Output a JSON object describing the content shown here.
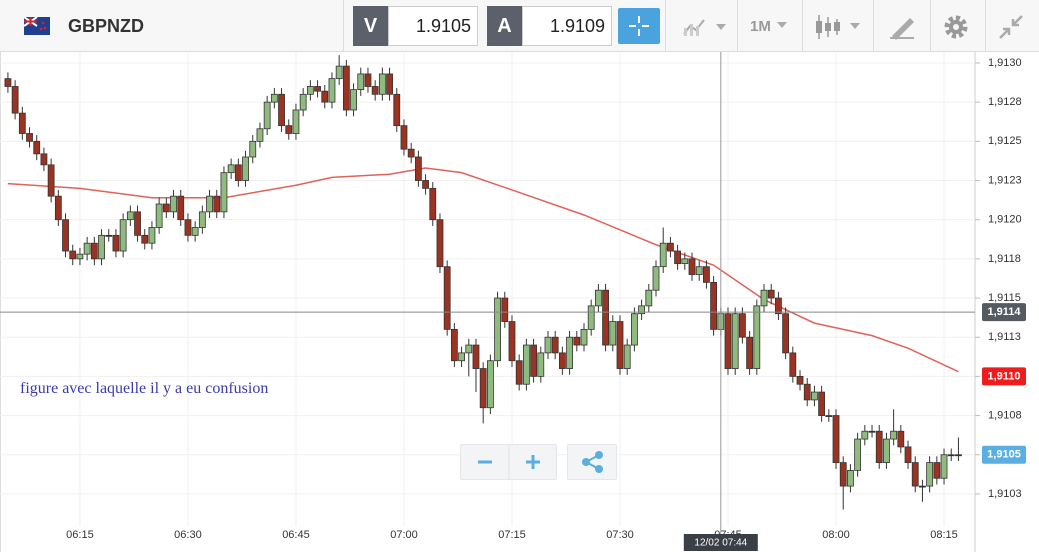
{
  "toolbar": {
    "symbol": "GBPNZD",
    "bid_label": "V",
    "bid": "1.9105",
    "ask_label": "A",
    "ask": "1.9109",
    "timeframe": "1M"
  },
  "chart_data": {
    "type": "candlestick",
    "annotation": "figure avec laquelle il y a eu confusion",
    "up_color": "#8fbc7e",
    "down_color": "#9b3322",
    "xlim": [
      363.9,
      499.3
    ],
    "ylim": [
      1.91009,
      1.91307
    ],
    "xticks": [
      {
        "value": 375,
        "label": "06:15"
      },
      {
        "value": 390,
        "label": "06:30"
      },
      {
        "value": 405,
        "label": "06:45"
      },
      {
        "value": 420,
        "label": "07:00"
      },
      {
        "value": 435,
        "label": "07:15"
      },
      {
        "value": 450,
        "label": "07:30"
      },
      {
        "value": 465,
        "label": "07:45"
      },
      {
        "value": 480,
        "label": "08:00"
      },
      {
        "value": 495,
        "label": "08:15"
      }
    ],
    "yticks": [
      {
        "value": 1.913,
        "label": "1,9130"
      },
      {
        "value": 1.91275,
        "label": "1,9128"
      },
      {
        "value": 1.9125,
        "label": "1,9125"
      },
      {
        "value": 1.91225,
        "label": "1,9123"
      },
      {
        "value": 1.912,
        "label": "1,9120"
      },
      {
        "value": 1.91175,
        "label": "1,9118"
      },
      {
        "value": 1.9115,
        "label": "1,9115"
      },
      {
        "value": 1.91125,
        "label": "1,9113"
      },
      {
        "value": 1.911,
        "label": "1,9110"
      },
      {
        "value": 1.91075,
        "label": "1,9108"
      },
      {
        "value": 1.9105,
        "label": "1,9105"
      },
      {
        "value": 1.91025,
        "label": "1,9103"
      }
    ],
    "grid": true,
    "x": [
      365,
      366,
      367,
      368,
      369,
      370,
      371,
      372,
      373,
      374,
      375,
      376,
      377,
      378,
      379,
      380,
      381,
      382,
      383,
      384,
      385,
      386,
      387,
      388,
      389,
      390,
      391,
      392,
      393,
      394,
      395,
      396,
      397,
      398,
      399,
      400,
      401,
      402,
      403,
      404,
      405,
      406,
      407,
      408,
      409,
      410,
      411,
      412,
      413,
      414,
      415,
      416,
      417,
      418,
      419,
      420,
      421,
      422,
      423,
      424,
      425,
      426,
      427,
      428,
      429,
      430,
      431,
      432,
      433,
      434,
      435,
      436,
      437,
      438,
      439,
      440,
      441,
      442,
      443,
      444,
      445,
      446,
      447,
      448,
      449,
      450,
      451,
      452,
      453,
      454,
      455,
      456,
      457,
      458,
      459,
      460,
      461,
      462,
      463,
      464,
      465,
      466,
      467,
      468,
      469,
      470,
      471,
      472,
      473,
      474,
      475,
      476,
      477,
      478,
      479,
      480,
      481,
      482,
      483,
      484,
      485,
      486,
      487,
      488,
      489,
      490,
      491,
      492,
      493,
      494,
      495,
      496,
      497
    ],
    "open": [
      1.9129,
      1.91285,
      1.91268,
      1.91255,
      1.9125,
      1.91242,
      1.91235,
      1.91215,
      1.912,
      1.9118,
      1.91175,
      1.91178,
      1.91185,
      1.91175,
      1.9119,
      1.9119,
      1.9118,
      1.912,
      1.91205,
      1.9119,
      1.91185,
      1.91195,
      1.9121,
      1.91205,
      1.91215,
      1.912,
      1.9119,
      1.91195,
      1.91205,
      1.91215,
      1.91205,
      1.9123,
      1.91235,
      1.91225,
      1.9124,
      1.9125,
      1.91258,
      1.91275,
      1.9128,
      1.9126,
      1.91255,
      1.9127,
      1.9128,
      1.91285,
      1.91282,
      1.91275,
      1.9129,
      1.91298,
      1.9127,
      1.91283,
      1.91293,
      1.91285,
      1.9128,
      1.91293,
      1.9128,
      1.9126,
      1.91245,
      1.9124,
      1.91225,
      1.9122,
      1.912,
      1.9117,
      1.9113,
      1.9111,
      1.91115,
      1.9112,
      1.91105,
      1.9108,
      1.9111,
      1.9115,
      1.91135,
      1.9111,
      1.91095,
      1.9112,
      1.911,
      1.91115,
      1.91125,
      1.91115,
      1.91105,
      1.91125,
      1.9112,
      1.9113,
      1.91145,
      1.91155,
      1.9112,
      1.91135,
      1.91105,
      1.9112,
      1.9114,
      1.91145,
      1.91155,
      1.9117,
      1.91185,
      1.9118,
      1.91172,
      1.91175,
      1.91165,
      1.9117,
      1.9116,
      1.9113,
      1.9114,
      1.91105,
      1.9114,
      1.91125,
      1.91105,
      1.91145,
      1.91155,
      1.9115,
      1.9114,
      1.91115,
      1.911,
      1.91095,
      1.91085,
      1.9109,
      1.91075,
      1.91075,
      1.91045,
      1.9103,
      1.9104,
      1.9106,
      1.91065,
      1.91065,
      1.91045,
      1.9106,
      1.91065,
      1.91055,
      1.91045,
      1.9103,
      1.9103,
      1.91045,
      1.91035,
      1.9105,
      1.9105
    ],
    "high": [
      1.91294,
      1.91289,
      1.91272,
      1.91259,
      1.91254,
      1.91246,
      1.91239,
      1.91219,
      1.91204,
      1.91184,
      1.91182,
      1.91189,
      1.91189,
      1.91194,
      1.91194,
      1.91194,
      1.91204,
      1.91209,
      1.91209,
      1.91194,
      1.91199,
      1.91214,
      1.91214,
      1.91219,
      1.91219,
      1.91204,
      1.91199,
      1.91209,
      1.91219,
      1.91219,
      1.91234,
      1.91239,
      1.91239,
      1.91244,
      1.91254,
      1.91262,
      1.91279,
      1.91284,
      1.91284,
      1.91264,
      1.91274,
      1.91284,
      1.91289,
      1.91289,
      1.91286,
      1.91294,
      1.91305,
      1.91302,
      1.91287,
      1.91297,
      1.91297,
      1.91289,
      1.91297,
      1.91297,
      1.91284,
      1.91264,
      1.91249,
      1.91244,
      1.91229,
      1.91224,
      1.91204,
      1.91174,
      1.91134,
      1.91119,
      1.91124,
      1.91124,
      1.91109,
      1.91114,
      1.91154,
      1.91154,
      1.91139,
      1.91114,
      1.91124,
      1.91124,
      1.91119,
      1.91129,
      1.91129,
      1.91119,
      1.91129,
      1.91129,
      1.91134,
      1.91149,
      1.91159,
      1.91159,
      1.91139,
      1.91139,
      1.91124,
      1.91144,
      1.91149,
      1.91159,
      1.91174,
      1.91195,
      1.91189,
      1.91184,
      1.91179,
      1.91179,
      1.91174,
      1.91174,
      1.91164,
      1.91144,
      1.91144,
      1.91144,
      1.91144,
      1.91129,
      1.91149,
      1.91159,
      1.91159,
      1.91154,
      1.91144,
      1.91119,
      1.91104,
      1.91099,
      1.91094,
      1.91094,
      1.91079,
      1.91079,
      1.91049,
      1.91044,
      1.91064,
      1.91069,
      1.91069,
      1.91069,
      1.91064,
      1.91079,
      1.91069,
      1.91059,
      1.91049,
      1.91034,
      1.91049,
      1.91049,
      1.91054,
      1.91054,
      1.91061
    ],
    "low": [
      1.91281,
      1.91264,
      1.91251,
      1.91246,
      1.91238,
      1.91231,
      1.91211,
      1.91196,
      1.91176,
      1.91171,
      1.91171,
      1.91174,
      1.91171,
      1.91171,
      1.91186,
      1.91176,
      1.91176,
      1.91196,
      1.91186,
      1.91181,
      1.91181,
      1.91191,
      1.91201,
      1.91201,
      1.91196,
      1.91186,
      1.91186,
      1.91191,
      1.91201,
      1.91201,
      1.91201,
      1.91226,
      1.91221,
      1.91221,
      1.91236,
      1.91246,
      1.91254,
      1.91271,
      1.91256,
      1.91251,
      1.91251,
      1.91266,
      1.91276,
      1.91278,
      1.91271,
      1.91271,
      1.91286,
      1.91266,
      1.91266,
      1.91279,
      1.91281,
      1.91276,
      1.91276,
      1.91276,
      1.91256,
      1.91241,
      1.91236,
      1.91221,
      1.91216,
      1.91196,
      1.91166,
      1.91126,
      1.91106,
      1.91106,
      1.911,
      1.9109,
      1.9107,
      1.91076,
      1.91106,
      1.91131,
      1.91106,
      1.91091,
      1.91091,
      1.91096,
      1.91096,
      1.91111,
      1.91111,
      1.91101,
      1.91101,
      1.91116,
      1.91116,
      1.91126,
      1.91141,
      1.91116,
      1.91116,
      1.91101,
      1.91101,
      1.91116,
      1.91136,
      1.91141,
      1.91151,
      1.91166,
      1.91176,
      1.91168,
      1.91168,
      1.91161,
      1.91161,
      1.91156,
      1.91126,
      1.91126,
      1.91101,
      1.91101,
      1.91121,
      1.91101,
      1.91101,
      1.91141,
      1.91146,
      1.91136,
      1.91111,
      1.91096,
      1.91091,
      1.91081,
      1.91081,
      1.91071,
      1.91071,
      1.91041,
      1.91015,
      1.91026,
      1.91036,
      1.91056,
      1.91061,
      1.91041,
      1.91041,
      1.91056,
      1.91051,
      1.91041,
      1.91026,
      1.9102,
      1.91026,
      1.91031,
      1.91031,
      1.91046,
      1.91046
    ],
    "close": [
      1.91285,
      1.91268,
      1.91255,
      1.9125,
      1.91242,
      1.91235,
      1.91215,
      1.912,
      1.9118,
      1.91175,
      1.91178,
      1.91185,
      1.91175,
      1.9119,
      1.9119,
      1.9118,
      1.912,
      1.91205,
      1.9119,
      1.91185,
      1.91195,
      1.9121,
      1.91205,
      1.91215,
      1.912,
      1.9119,
      1.91195,
      1.91205,
      1.91215,
      1.91205,
      1.9123,
      1.91235,
      1.91225,
      1.9124,
      1.9125,
      1.91258,
      1.91275,
      1.9128,
      1.9126,
      1.91255,
      1.9127,
      1.9128,
      1.91285,
      1.91282,
      1.91275,
      1.9129,
      1.91298,
      1.9127,
      1.91283,
      1.91293,
      1.91285,
      1.9128,
      1.91293,
      1.9128,
      1.9126,
      1.91245,
      1.9124,
      1.91225,
      1.9122,
      1.912,
      1.9117,
      1.9113,
      1.9111,
      1.91115,
      1.9112,
      1.91105,
      1.9108,
      1.9111,
      1.9115,
      1.91135,
      1.9111,
      1.91095,
      1.9112,
      1.911,
      1.91115,
      1.91125,
      1.91115,
      1.91105,
      1.91125,
      1.9112,
      1.9113,
      1.91145,
      1.91155,
      1.9112,
      1.91135,
      1.91105,
      1.9112,
      1.9114,
      1.91145,
      1.91155,
      1.9117,
      1.91185,
      1.9118,
      1.91172,
      1.91175,
      1.91165,
      1.9117,
      1.9116,
      1.9113,
      1.9114,
      1.91105,
      1.9114,
      1.91125,
      1.91105,
      1.91145,
      1.91155,
      1.9115,
      1.9114,
      1.91115,
      1.911,
      1.91095,
      1.91085,
      1.9109,
      1.91075,
      1.91075,
      1.91045,
      1.9103,
      1.9104,
      1.9106,
      1.91065,
      1.91065,
      1.91045,
      1.9106,
      1.91065,
      1.91055,
      1.91045,
      1.9103,
      1.9103,
      1.91045,
      1.91035,
      1.9105,
      1.9105,
      1.9105
    ],
    "ma": {
      "color": "#e0625a",
      "x": [
        365,
        375,
        385,
        395,
        405,
        410,
        418,
        423,
        428,
        435,
        445,
        455,
        463,
        470,
        477,
        485,
        490,
        497
      ],
      "values": [
        1.91223,
        1.9122,
        1.91214,
        1.91214,
        1.91222,
        1.91227,
        1.91229,
        1.91233,
        1.9123,
        1.91219,
        1.91203,
        1.91184,
        1.91171,
        1.91149,
        1.91134,
        1.91126,
        1.91118,
        1.91103
      ]
    },
    "crosshair": {
      "x": {
        "value": 464,
        "label": "12/02 07:44"
      },
      "y": {
        "value": 1.91141,
        "label": "1,9114"
      }
    },
    "ma_marker": {
      "value": 1.911,
      "label": "1,9110",
      "color": "#ee1c1c"
    },
    "last_price": {
      "value": 1.9105,
      "label": "1,9105",
      "color": "#5aaee0"
    }
  }
}
